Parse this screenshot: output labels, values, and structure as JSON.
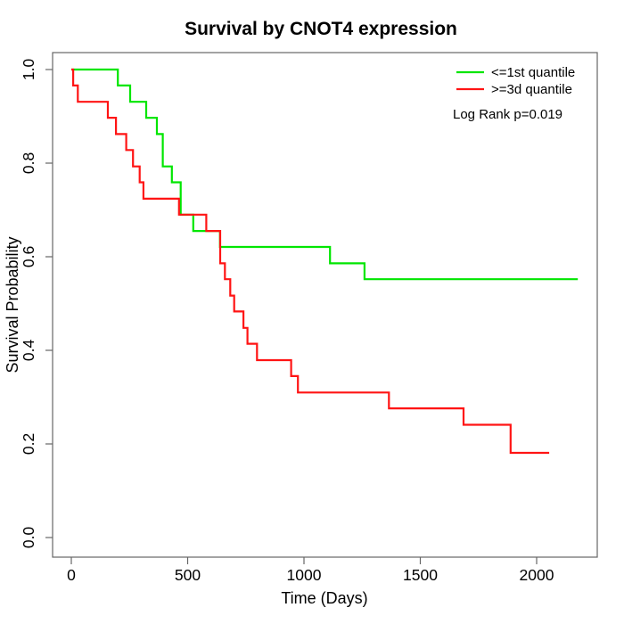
{
  "page": {
    "background": "#ffffff"
  },
  "chart_data": {
    "type": "line",
    "subtype": "kaplan-meier-step",
    "title": "Survival by CNOT4 expression",
    "xlabel": "Time (Days)",
    "ylabel": "Survival Probability",
    "xlim": [
      0,
      2260
    ],
    "ylim": [
      0,
      1
    ],
    "grid": false,
    "legend_position": "top-right",
    "annotation": "Log Rank p=0.019",
    "axis_color": "#666666",
    "text_color": "#000000",
    "x_ticks": [
      0,
      500,
      1000,
      1500,
      2000
    ],
    "x_tick_labels": [
      "0",
      "500",
      "1000",
      "1500",
      "2000"
    ],
    "y_ticks": [
      0.0,
      0.2,
      0.4,
      0.6,
      0.8,
      1.0
    ],
    "y_tick_labels": [
      "0.0",
      "0.2",
      "0.4",
      "0.6",
      "0.8",
      "1.0"
    ],
    "series": [
      {
        "name": "<=1st quantile",
        "slug": "first-quantile",
        "color": "#00e600",
        "start": [
          0,
          1.0
        ],
        "events": [
          [
            200,
            0.966
          ],
          [
            253,
            0.931
          ],
          [
            322,
            0.897
          ],
          [
            368,
            0.862
          ],
          [
            393,
            0.793
          ],
          [
            432,
            0.759
          ],
          [
            470,
            0.69
          ],
          [
            524,
            0.655
          ],
          [
            639,
            0.621
          ],
          [
            1112,
            0.586
          ],
          [
            1260,
            0.552
          ]
        ],
        "end_time": 2177
      },
      {
        "name": ">=3d quantile",
        "slug": "third-quantile",
        "color": "#ff1414",
        "start": [
          0,
          1.0
        ],
        "events": [
          [
            8,
            0.966
          ],
          [
            28,
            0.931
          ],
          [
            157,
            0.897
          ],
          [
            192,
            0.862
          ],
          [
            236,
            0.828
          ],
          [
            265,
            0.793
          ],
          [
            294,
            0.759
          ],
          [
            310,
            0.724
          ],
          [
            463,
            0.69
          ],
          [
            580,
            0.655
          ],
          [
            640,
            0.586
          ],
          [
            660,
            0.552
          ],
          [
            683,
            0.517
          ],
          [
            700,
            0.483
          ],
          [
            740,
            0.448
          ],
          [
            757,
            0.414
          ],
          [
            798,
            0.379
          ],
          [
            945,
            0.345
          ],
          [
            974,
            0.31
          ],
          [
            1365,
            0.276
          ],
          [
            1686,
            0.241
          ],
          [
            1888,
            0.181
          ]
        ],
        "end_time": 2054
      }
    ]
  }
}
